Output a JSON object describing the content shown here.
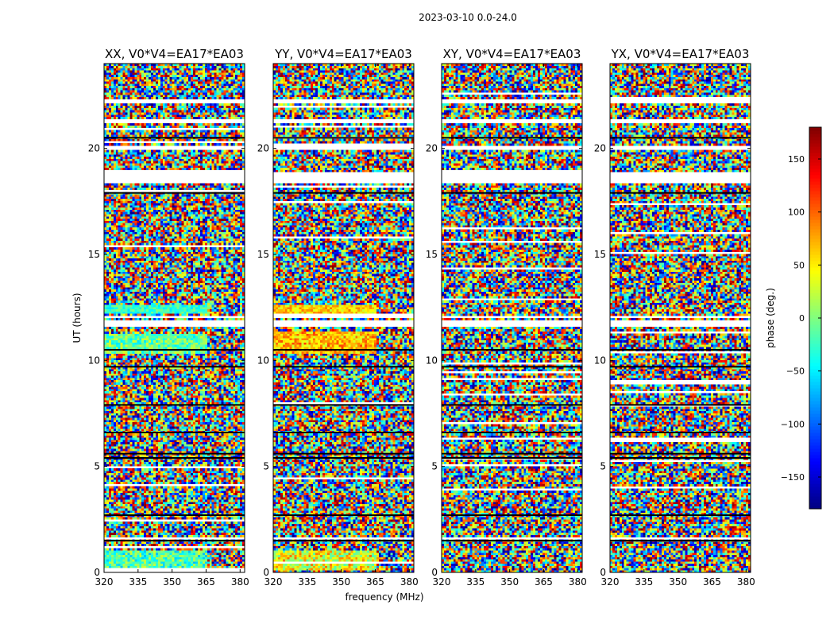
{
  "figure": {
    "suptitle": "2023-03-10 0.0-24.0"
  },
  "chart_data": {
    "type": "heatmap",
    "title": "2023-03-10 0.0-24.0",
    "xlabel": "frequency (MHz)",
    "ylabel": "UT (hours)",
    "xlim": [
      320,
      382
    ],
    "ylim": [
      0,
      24
    ],
    "xticks": [
      320,
      335,
      350,
      365,
      380
    ],
    "yticks": [
      0,
      5,
      10,
      15,
      20
    ],
    "panels": [
      {
        "name": "XX",
        "title": "XX, V0*V4=EA17*EA03",
        "bias": [
          {
            "from": 10.3,
            "to": 11.3,
            "value": -10,
            "spread": 45
          },
          {
            "from": 12.2,
            "to": 12.6,
            "value": -25,
            "spread": 30
          },
          {
            "from": 0.1,
            "to": 1.0,
            "value": -20,
            "spread": 50
          }
        ]
      },
      {
        "name": "YY",
        "title": "YY, V0*V4=EA17*EA03",
        "bias": [
          {
            "from": 10.3,
            "to": 11.4,
            "value": 70,
            "spread": 45
          },
          {
            "from": 12.2,
            "to": 12.6,
            "value": 60,
            "spread": 35
          },
          {
            "from": 0.1,
            "to": 1.0,
            "value": 40,
            "spread": 60
          }
        ]
      },
      {
        "name": "XY",
        "title": "XY, V0*V4=EA17*EA03",
        "bias": []
      },
      {
        "name": "YX",
        "title": "YX, V0*V4=EA17*EA03",
        "bias": []
      }
    ],
    "gaps_hours": [
      [
        1.55,
        1.65
      ],
      [
        18.4,
        18.9
      ],
      [
        19.9,
        20.1
      ],
      [
        21.2,
        21.4
      ],
      [
        22.1,
        22.3
      ],
      [
        11.6,
        11.9
      ],
      [
        12.0,
        12.15
      ]
    ],
    "dark_rows_hours": [
      1.5,
      2.7,
      5.4,
      5.6,
      6.6,
      7.9,
      9.7,
      10.5,
      17.9,
      20.5
    ],
    "colorbar": {
      "label": "phase (deg.)",
      "min": -180,
      "max": 180,
      "ticks": [
        -150,
        -100,
        -50,
        0,
        50,
        100,
        150
      ],
      "colormap": "jet"
    }
  }
}
